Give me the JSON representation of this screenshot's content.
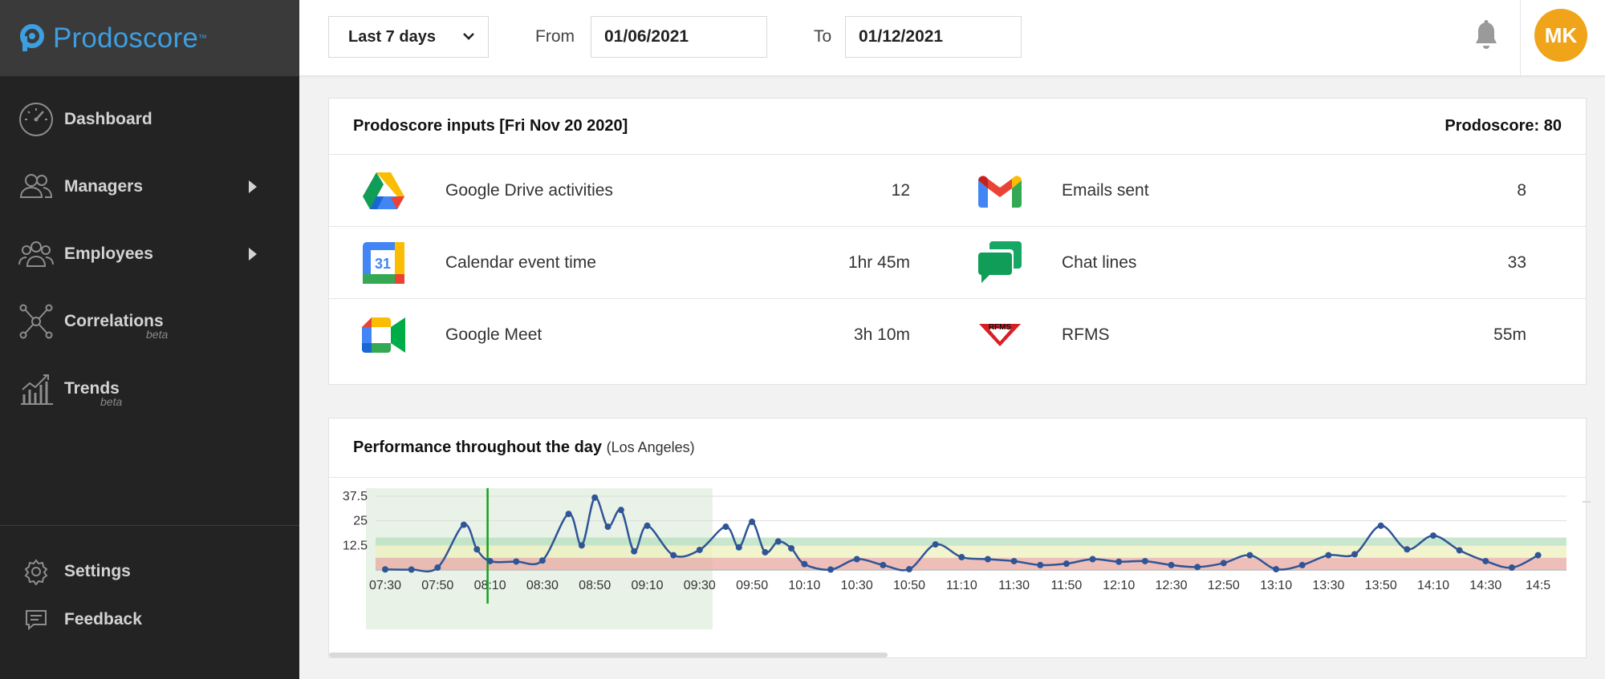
{
  "brand": {
    "name": "Prodoscore",
    "tm": "™"
  },
  "sidebar": {
    "items": [
      {
        "label": "Dashboard",
        "icon": "speedometer-icon"
      },
      {
        "label": "Managers",
        "icon": "managers-icon",
        "has_arrow": true
      },
      {
        "label": "Employees",
        "icon": "employees-icon",
        "has_arrow": true
      },
      {
        "label": "Correlations",
        "sub": "beta",
        "icon": "network-icon"
      },
      {
        "label": "Trends",
        "sub": "beta",
        "icon": "trends-icon"
      }
    ],
    "bottom_items": [
      {
        "label": "Settings",
        "icon": "gear-icon"
      },
      {
        "label": "Feedback",
        "icon": "feedback-icon"
      }
    ]
  },
  "topbar": {
    "range": "Last 7 days",
    "from_label": "From",
    "from_value": "01/06/2021",
    "to_label": "To",
    "to_value": "01/12/2021",
    "avatar_initials": "MK",
    "avatar_color": "#f0a419"
  },
  "inputs_card": {
    "title": "Prodoscore inputs [Fri Nov 20 2020]",
    "score": "Prodoscore: 80",
    "rows": [
      [
        {
          "label": "Google Drive activities",
          "value": "12",
          "icon": "google-drive-icon"
        },
        {
          "label": "Emails sent",
          "value": "8",
          "icon": "gmail-icon"
        }
      ],
      [
        {
          "label": "Calendar event time",
          "value": "1hr 45m",
          "icon": "google-calendar-icon",
          "icon_text": "31"
        },
        {
          "label": "Chat lines",
          "value": "33",
          "icon": "google-chat-icon"
        }
      ],
      [
        {
          "label": "Google Meet",
          "value": "3h 10m",
          "icon": "google-meet-icon"
        },
        {
          "label": "RFMS",
          "value": "55m",
          "icon": "rfms-logo-icon",
          "icon_text": "RFMS"
        }
      ]
    ]
  },
  "chart_card": {
    "title": "Performance throughout the day",
    "subtitle": "(Los Angeles)"
  },
  "chart_data": {
    "type": "line",
    "x": [
      "07:30",
      "07:40",
      "07:50",
      "08:00",
      "08:05",
      "08:10",
      "08:20",
      "08:30",
      "08:40",
      "08:45",
      "08:50",
      "08:55",
      "09:00",
      "09:05",
      "09:10",
      "09:20",
      "09:30",
      "09:40",
      "09:45",
      "09:50",
      "09:55",
      "10:00",
      "10:05",
      "10:10",
      "10:20",
      "10:30",
      "10:40",
      "10:50",
      "11:00",
      "11:10",
      "11:20",
      "11:30",
      "11:40",
      "11:50",
      "12:00",
      "12:10",
      "12:20",
      "12:30",
      "12:40",
      "12:50",
      "13:00",
      "13:10",
      "13:20",
      "13:30",
      "13:40",
      "13:50",
      "14:00",
      "14:10",
      "14:20",
      "14:30",
      "14:40",
      "14:50"
    ],
    "y": [
      0.3,
      0.2,
      1.2,
      23,
      10.5,
      4.5,
      4.3,
      4.8,
      28.5,
      12.5,
      36.8,
      22,
      30.5,
      9.5,
      22.5,
      7.5,
      10.2,
      22,
      11.5,
      24.5,
      9,
      14.5,
      11,
      3,
      0.2,
      5.5,
      2.5,
      0.4,
      13,
      6.5,
      5.5,
      4.5,
      2.5,
      3.2,
      5.5,
      4.2,
      4.5,
      2.5,
      1.5,
      3.5,
      7.5,
      0.4,
      2.5,
      7.5,
      8,
      22.5,
      10.5,
      17.5,
      10,
      4.5,
      1.2,
      7.5
    ],
    "ylim": [
      0,
      37.5
    ],
    "yticks": [
      "12.5",
      "25",
      "37.5"
    ],
    "xticks": [
      "07:30",
      "07:50",
      "08:10",
      "08:30",
      "08:50",
      "09:10",
      "09:30",
      "09:50",
      "10:10",
      "10:30",
      "10:50",
      "11:10",
      "11:30",
      "11:50",
      "12:10",
      "12:30",
      "12:50",
      "13:10",
      "13:30",
      "13:50",
      "14:10",
      "14:30",
      "14:5"
    ],
    "bands": [
      {
        "name": "low",
        "from": 0,
        "to": 6.25,
        "color": "#e8a9a2"
      },
      {
        "name": "mid",
        "from": 6.25,
        "to": 12.5,
        "color": "#eef0bd"
      },
      {
        "name": "high",
        "from": 12.5,
        "to": 16.5,
        "color": "#b7dfbf"
      }
    ],
    "highlight_range": [
      "07:30",
      "09:30"
    ],
    "current_marker": "08:10",
    "line_color": "#2f5597",
    "grid": true
  }
}
